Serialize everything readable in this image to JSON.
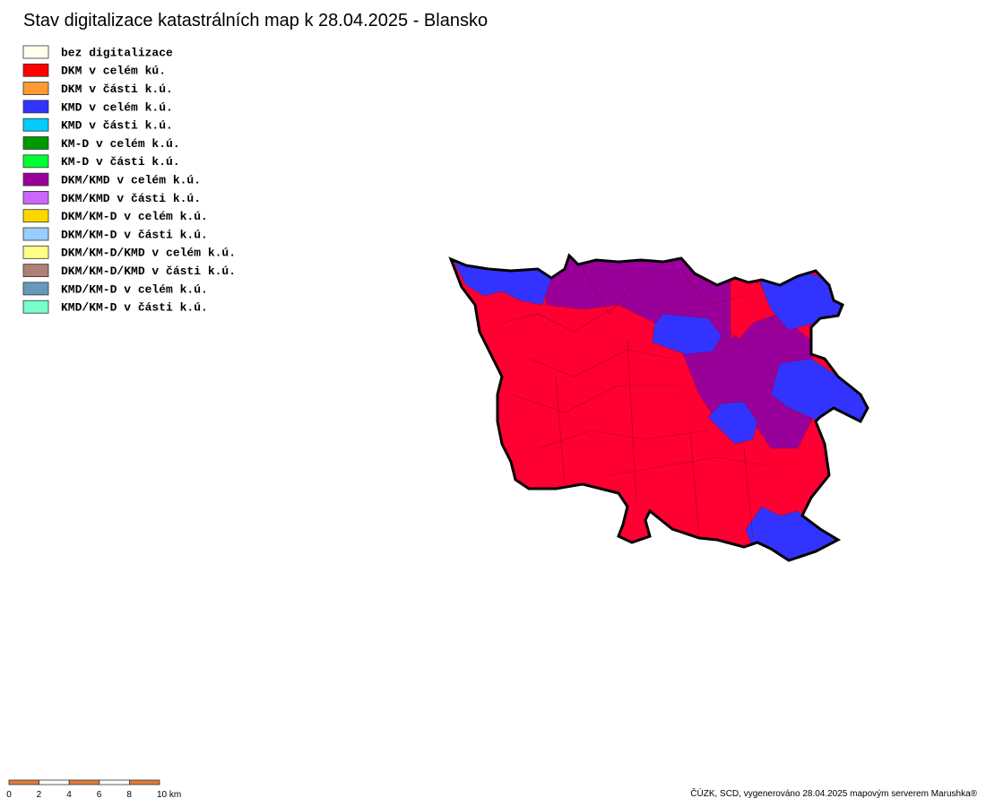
{
  "title": "Stav digitalizace katastrálních map k 28.04.2025 - Blansko",
  "legend": [
    {
      "label": "bez digitalizace",
      "color": "#ffffee"
    },
    {
      "label": "DKM v celém kú.",
      "color": "#ff0000"
    },
    {
      "label": "DKM v části k.ú.",
      "color": "#ff9933"
    },
    {
      "label": "KMD v celém k.ú.",
      "color": "#3333ff"
    },
    {
      "label": "KMD v části k.ú.",
      "color": "#00ccff"
    },
    {
      "label": "KM-D v celém k.ú.",
      "color": "#009900"
    },
    {
      "label": "KM-D v části k.ú.",
      "color": "#00ff33"
    },
    {
      "label": "DKM/KMD v celém k.ú.",
      "color": "#990099"
    },
    {
      "label": "DKM/KMD v části k.ú.",
      "color": "#cc66ff"
    },
    {
      "label": "DKM/KM-D v celém k.ú.",
      "color": "#ffd700"
    },
    {
      "label": "DKM/KM-D v části k.ú.",
      "color": "#99ccff"
    },
    {
      "label": "DKM/KM-D/KMD v celém k.ú.",
      "color": "#ffff88"
    },
    {
      "label": "DKM/KM-D/KMD v části k.ú.",
      "color": "#b07f77"
    },
    {
      "label": "KMD/KM-D v celém k.ú.",
      "color": "#6699bb"
    },
    {
      "label": "KMD/KM-D v části k.ú.",
      "color": "#77ffcc"
    }
  ],
  "scale_bar": {
    "labels": [
      "0",
      "2",
      "4",
      "6",
      "8",
      "10 km"
    ]
  },
  "credit": "ČÚZK, SCD, vygenerováno 28.04.2025 mapovým serverem Marushka®"
}
